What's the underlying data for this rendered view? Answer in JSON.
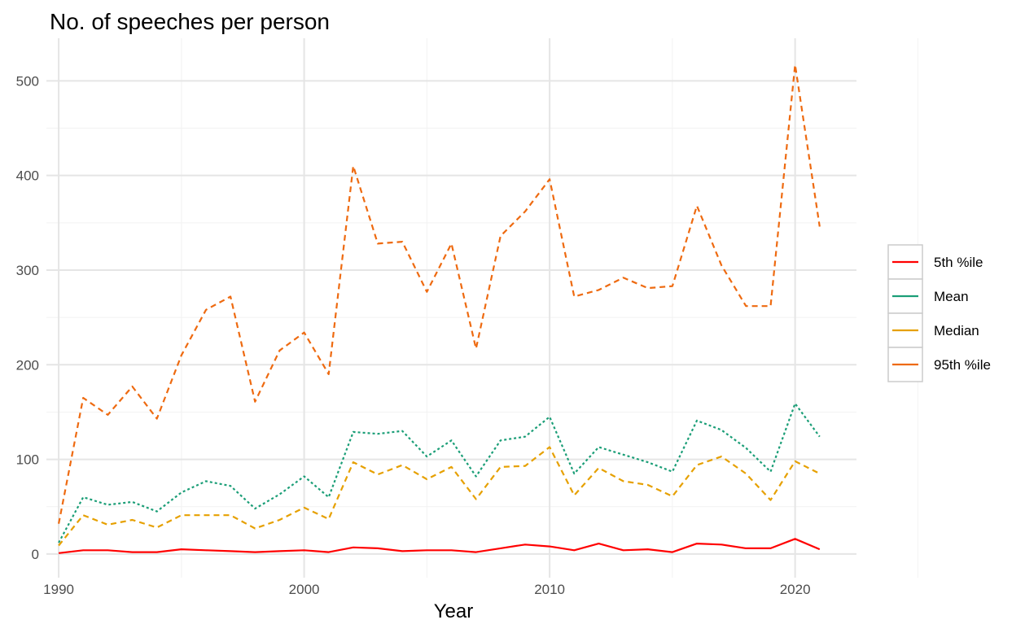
{
  "chart_data": {
    "type": "line",
    "title": "No. of speeches per person",
    "xlabel": "Year",
    "ylabel": "",
    "xlim": [
      1989.5,
      2022.5
    ],
    "ylim": [
      -25,
      545
    ],
    "x_ticks": [
      1990,
      2000,
      2010,
      2020
    ],
    "y_ticks": [
      0,
      100,
      200,
      300,
      400,
      500
    ],
    "grid": true,
    "legend_position": "right",
    "x": [
      1990,
      1991,
      1992,
      1993,
      1994,
      1995,
      1996,
      1997,
      1998,
      1999,
      2000,
      2001,
      2002,
      2003,
      2004,
      2005,
      2006,
      2007,
      2008,
      2009,
      2010,
      2011,
      2012,
      2013,
      2014,
      2015,
      2016,
      2017,
      2018,
      2019,
      2020,
      2021
    ],
    "series": [
      {
        "name": "5th %ile",
        "color": "#FF0000",
        "dash": "solid",
        "values": [
          1,
          4,
          4,
          2,
          2,
          5,
          4,
          3,
          2,
          3,
          4,
          2,
          7,
          6,
          3,
          4,
          4,
          2,
          6,
          10,
          8,
          4,
          11,
          4,
          5,
          2,
          11,
          10,
          6,
          6,
          16,
          5
        ]
      },
      {
        "name": "Mean",
        "color": "#1B9E77",
        "dash": "dotted",
        "values": [
          12,
          60,
          52,
          55,
          45,
          65,
          77,
          72,
          48,
          63,
          82,
          60,
          129,
          127,
          130,
          103,
          120,
          82,
          120,
          124,
          145,
          85,
          113,
          105,
          97,
          87,
          141,
          131,
          112,
          87,
          159,
          124
        ]
      },
      {
        "name": "Median",
        "color": "#E6A000",
        "dash": "dashed",
        "values": [
          9,
          41,
          31,
          36,
          28,
          41,
          41,
          41,
          27,
          36,
          49,
          37,
          97,
          84,
          94,
          79,
          92,
          58,
          92,
          93,
          113,
          62,
          91,
          77,
          73,
          61,
          94,
          103,
          85,
          57,
          98,
          85
        ]
      },
      {
        "name": "95th %ile",
        "color": "#EE6A10",
        "dash": "dashed",
        "values": [
          32,
          165,
          147,
          177,
          143,
          210,
          258,
          272,
          161,
          215,
          234,
          190,
          410,
          328,
          330,
          277,
          328,
          217,
          336,
          362,
          396,
          272,
          279,
          292,
          281,
          283,
          368,
          305,
          262,
          262,
          517,
          346
        ]
      }
    ]
  }
}
